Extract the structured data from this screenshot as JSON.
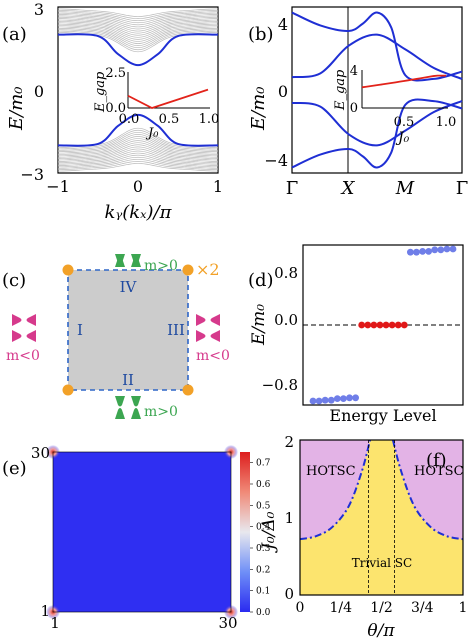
{
  "panels": {
    "a": {
      "label": "(a)",
      "ylabel": "E/m₀",
      "xlabel": "kᵧ(kₓ)/π",
      "yticks": [
        "3",
        "0",
        "−3"
      ],
      "xticks": [
        "−1",
        "0",
        "1"
      ],
      "inset": {
        "ylabel": "E_gap",
        "xlabel": "J₀",
        "yticks": [
          "2.5",
          "0.0"
        ],
        "xticks": [
          "0.0",
          "0.5",
          "1.0"
        ]
      }
    },
    "b": {
      "label": "(b)",
      "ylabel": "E/m₀",
      "yticks": [
        "4",
        "0",
        "−4"
      ],
      "xticks": [
        "Γ",
        "X",
        "M",
        "Γ"
      ],
      "inset": {
        "ylabel": "E_gap",
        "xlabel": "J₀",
        "yticks": [
          "4",
          "0"
        ],
        "xticks": [
          "0.5",
          "1.0"
        ]
      }
    },
    "c": {
      "label": "(c)",
      "edges": [
        "IV",
        "I",
        "III",
        "II"
      ],
      "mass_labels": [
        "m>0",
        "m<0",
        "m<0",
        "m>0"
      ],
      "multiplicity": "×2"
    },
    "d": {
      "label": "(d)",
      "ylabel": "E/m₀",
      "xlabel": "Energy Level",
      "yticks": [
        "0.8",
        "0.0",
        "−0.8"
      ]
    },
    "e": {
      "label": "(e)",
      "yticks": [
        "30",
        "1"
      ],
      "xticks": [
        "1",
        "30"
      ],
      "colorbar_ticks": [
        "0.7",
        "0.6",
        "0.5",
        "0.4",
        "0.3",
        "0.2",
        "0.1",
        "0.0"
      ]
    },
    "f": {
      "label": "(f)",
      "ylabel": "J₀/Δ₀",
      "xlabel": "θ/π",
      "yticks": [
        "2",
        "1",
        "0"
      ],
      "xticks": [
        "0",
        "1/4",
        "1/2",
        "3/4",
        "1"
      ],
      "regions": [
        "HOTSC",
        "HOTSC",
        "Trivial SC"
      ]
    }
  },
  "colors": {
    "band": "#1f2fd4",
    "gray_band": "#b9b9b9",
    "gap_line": "#e2231a",
    "corner": "#f2a128",
    "edge_dash": "#2e66c7",
    "mass_pos": "#3ca651",
    "mass_neg": "#d63a8c",
    "phase_topo": "#e3b3e6",
    "phase_triv": "#fce46e"
  },
  "chart_data": [
    {
      "panel": "(a)",
      "type": "line",
      "xlabel": "kᵧ(kₓ)/π",
      "ylabel": "E/m₀",
      "xlim": [
        -1,
        1
      ],
      "ylim": [
        -3,
        3
      ],
      "series": [
        {
          "x": [
            -1,
            -0.5,
            -0.25,
            0,
            0.25,
            0.5,
            1
          ],
          "y": [
            2.0,
            1.95,
            1.3,
            0.9,
            1.3,
            1.95,
            2.0
          ]
        },
        {
          "x": [
            -1,
            -0.5,
            -0.25,
            0,
            0.25,
            0.5,
            1
          ],
          "y": [
            -2.0,
            -1.95,
            -1.3,
            -0.9,
            -1.3,
            -1.95,
            -2.0
          ]
        }
      ],
      "inset": {
        "type": "line",
        "xlabel": "J₀",
        "ylabel": "E_gap",
        "xlim": [
          0,
          1
        ],
        "ylim": [
          0,
          2.5
        ],
        "x": [
          0,
          0.3,
          1.0
        ],
        "y": [
          0.9,
          0.0,
          1.35
        ]
      }
    },
    {
      "panel": "(b)",
      "type": "line",
      "ylabel": "E/m₀",
      "categories": [
        "Γ",
        "X",
        "M",
        "Γ"
      ],
      "ylim": [
        -4.5,
        4.5
      ],
      "series": [
        {
          "x": [
            0,
            0.5,
            1,
            1.25,
            1.5,
            1.75,
            2,
            2.5,
            3
          ],
          "y": [
            4.2,
            3.5,
            3.2,
            3.6,
            4.2,
            3.4,
            0.8,
            0.6,
            1.0
          ]
        },
        {
          "x": [
            0,
            0.5,
            1,
            1.5,
            2,
            2.5,
            3
          ],
          "y": [
            0.7,
            0.9,
            2.4,
            3.0,
            2.2,
            1.2,
            0.6
          ]
        },
        {
          "x": [
            0,
            0.5,
            1,
            1.5,
            2,
            2.5,
            3
          ],
          "y": [
            -0.7,
            -0.9,
            -2.4,
            -3.0,
            -2.2,
            -1.2,
            -0.6
          ]
        },
        {
          "x": [
            0,
            0.5,
            1,
            1.25,
            1.5,
            1.75,
            2,
            2.5,
            3
          ],
          "y": [
            -4.2,
            -3.5,
            -3.2,
            -3.6,
            -4.2,
            -3.4,
            -0.8,
            -0.6,
            -1.0
          ]
        }
      ],
      "inset": {
        "type": "line",
        "xlabel": "J₀",
        "ylabel": "E_gap",
        "xlim": [
          0,
          1
        ],
        "ylim": [
          0,
          4
        ],
        "x": [
          0,
          0.5,
          1.0
        ],
        "y": [
          2.3,
          2.9,
          3.6
        ]
      }
    },
    {
      "panel": "(d)",
      "type": "scatter",
      "xlabel": "Energy Level",
      "ylabel": "E/m₀",
      "ylim": [
        -1.0,
        1.0
      ],
      "series": [
        {
          "x": [
            1,
            2,
            3,
            4,
            5,
            6,
            7,
            8
          ],
          "y": [
            -0.95,
            -0.95,
            -0.94,
            -0.94,
            -0.92,
            -0.92,
            -0.91,
            -0.91
          ]
        },
        {
          "x": [
            9,
            10,
            11,
            12,
            13,
            14,
            15,
            16
          ],
          "y": [
            0,
            0,
            0,
            0,
            0,
            0,
            0,
            0
          ]
        },
        {
          "x": [
            17,
            18,
            19,
            20,
            21,
            22,
            23,
            24
          ],
          "y": [
            0.91,
            0.91,
            0.92,
            0.92,
            0.94,
            0.94,
            0.95,
            0.95
          ]
        }
      ]
    },
    {
      "panel": "(e)",
      "type": "heatmap",
      "xlim": [
        1,
        30
      ],
      "ylim": [
        1,
        30
      ],
      "clim": [
        0,
        0.75
      ],
      "peaks": [
        {
          "x": 1,
          "y": 1,
          "v": 0.72
        },
        {
          "x": 30,
          "y": 1,
          "v": 0.72
        },
        {
          "x": 1,
          "y": 30,
          "v": 0.72
        },
        {
          "x": 30,
          "y": 30,
          "v": 0.72
        }
      ]
    },
    {
      "panel": "(f)",
      "type": "area",
      "xlabel": "θ/π",
      "ylabel": "J₀/Δ₀",
      "xlim": [
        0,
        1
      ],
      "ylim": [
        0,
        2
      ],
      "boundary": {
        "x": [
          0,
          0.1,
          0.2,
          0.3,
          0.38,
          0.43,
          0.57,
          0.62,
          0.7,
          0.8,
          0.9,
          1.0
        ],
        "y": [
          0.72,
          0.76,
          0.88,
          1.15,
          1.6,
          2.0,
          2.0,
          1.6,
          1.15,
          0.88,
          0.76,
          0.72
        ]
      },
      "dashed_verticals": [
        0.42,
        0.58
      ]
    }
  ]
}
